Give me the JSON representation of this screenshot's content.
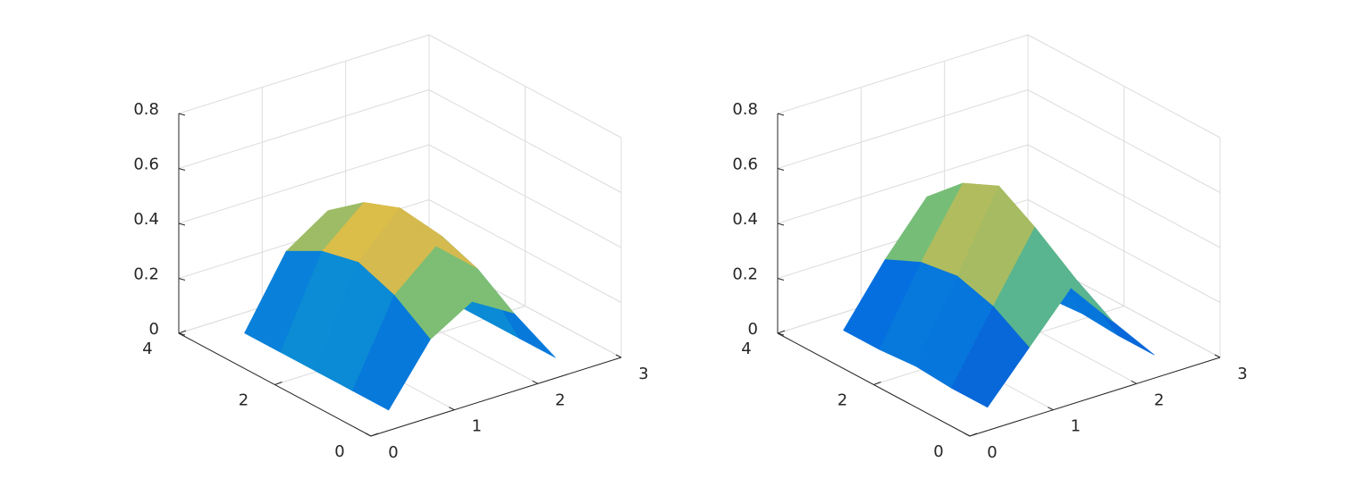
{
  "chart_data": [
    {
      "type": "surface",
      "x": [
        0.5,
        1,
        1.5,
        2,
        2.5
      ],
      "y": [
        0.5,
        1.25,
        2,
        2.75,
        3.5
      ],
      "z": [
        [
          0,
          0.21,
          0.3,
          0.21,
          0
        ],
        [
          0,
          0.3,
          0.43,
          0.3,
          0
        ],
        [
          0,
          0.35,
          0.5,
          0.35,
          0
        ],
        [
          0,
          0.32,
          0.45,
          0.32,
          0
        ],
        [
          0,
          0.25,
          0.35,
          0.25,
          0
        ]
      ],
      "xlim": [
        0,
        3
      ],
      "xticks": [
        0,
        1,
        2,
        3
      ],
      "ylim": [
        0,
        4
      ],
      "yticks": [
        0,
        2,
        4
      ],
      "zlim": [
        0,
        0.8
      ],
      "zticks": [
        0,
        0.2,
        0.4,
        0.6,
        0.8
      ],
      "grid": true,
      "colormap": "parula"
    },
    {
      "type": "surface",
      "x": [
        0.5,
        1,
        1.5,
        2,
        2.5
      ],
      "y": [
        0.5,
        1.25,
        2,
        2.75,
        3.5
      ],
      "z": [
        [
          0.01,
          0.18,
          0.35,
          0.18,
          0.01
        ],
        [
          0.01,
          0.26,
          0.5,
          0.26,
          0.01
        ],
        [
          0.02,
          0.3,
          0.58,
          0.3,
          0.02
        ],
        [
          0.01,
          0.28,
          0.52,
          0.28,
          0.01
        ],
        [
          0.01,
          0.22,
          0.4,
          0.22,
          0.01
        ]
      ],
      "xlim": [
        0,
        3
      ],
      "xticks": [
        0,
        1,
        2,
        3
      ],
      "ylim": [
        0,
        4
      ],
      "yticks": [
        0,
        2,
        4
      ],
      "zlim": [
        0,
        0.8
      ],
      "zticks": [
        0,
        0.2,
        0.4,
        0.6,
        0.8
      ],
      "grid": true,
      "colormap": "parula"
    }
  ]
}
